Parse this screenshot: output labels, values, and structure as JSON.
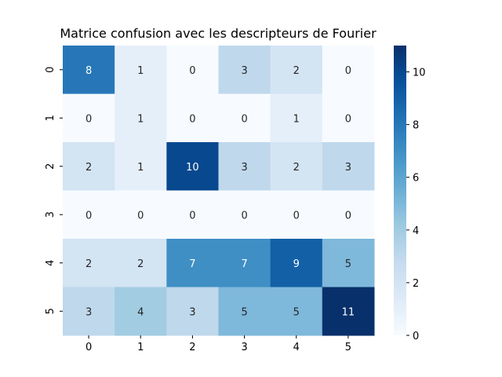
{
  "chart_data": {
    "type": "heatmap",
    "title": "Matrice confusion avec les descripteurs de Fourier",
    "xlabel": "",
    "ylabel": "",
    "x_categories": [
      "0",
      "1",
      "2",
      "3",
      "4",
      "5"
    ],
    "y_categories": [
      "0",
      "1",
      "2",
      "3",
      "4",
      "5"
    ],
    "values": [
      [
        8,
        1,
        0,
        3,
        2,
        0
      ],
      [
        0,
        1,
        0,
        0,
        1,
        0
      ],
      [
        2,
        1,
        10,
        3,
        2,
        3
      ],
      [
        0,
        0,
        0,
        0,
        0,
        0
      ],
      [
        2,
        2,
        7,
        7,
        9,
        5
      ],
      [
        3,
        4,
        3,
        5,
        5,
        11
      ]
    ],
    "colormap": "Blues",
    "vmin": 0,
    "vmax": 11,
    "colorbar_ticks": [
      "0",
      "2",
      "4",
      "6",
      "8",
      "10"
    ],
    "annotations": true,
    "grid": false
  }
}
